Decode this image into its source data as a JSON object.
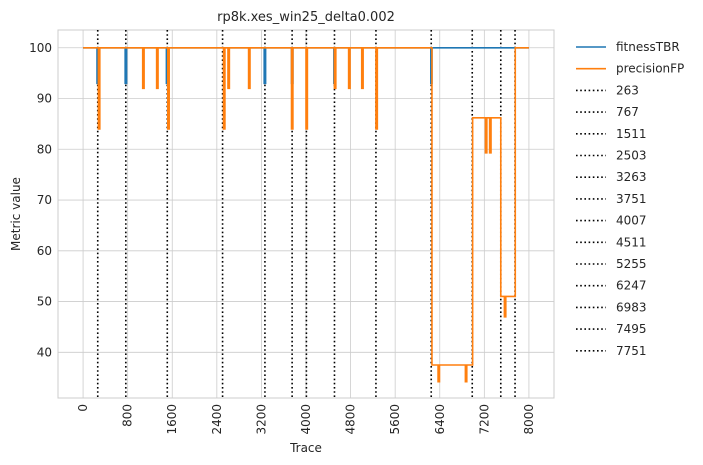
{
  "chart_data": {
    "type": "line",
    "title": "rp8k.xes_win25_delta0.002",
    "xlabel": "Trace",
    "ylabel": "Metric value",
    "xlim": [
      -450,
      8450
    ],
    "ylim": [
      31,
      103.5
    ],
    "xticks": [
      0,
      800,
      1600,
      2400,
      3200,
      4000,
      4800,
      5600,
      6400,
      7200,
      8000
    ],
    "yticks": [
      40,
      50,
      60,
      70,
      80,
      90,
      100
    ],
    "grid": true,
    "legend_position": "outside-right",
    "series": [
      {
        "name": "fitnessTBR",
        "color": "#1f77b4",
        "points": [
          [
            0,
            100
          ],
          [
            250,
            100
          ],
          [
            250,
            93
          ],
          [
            275,
            93
          ],
          [
            275,
            100
          ],
          [
            755,
            100
          ],
          [
            755,
            93
          ],
          [
            780,
            93
          ],
          [
            780,
            100
          ],
          [
            1495,
            100
          ],
          [
            1495,
            93
          ],
          [
            1520,
            93
          ],
          [
            1520,
            100
          ],
          [
            3250,
            100
          ],
          [
            3250,
            93
          ],
          [
            3275,
            93
          ],
          [
            3275,
            100
          ],
          [
            3740,
            100
          ],
          [
            3740,
            93
          ],
          [
            3765,
            93
          ],
          [
            3765,
            100
          ],
          [
            4500,
            100
          ],
          [
            4500,
            93
          ],
          [
            4525,
            93
          ],
          [
            4525,
            100
          ],
          [
            6240,
            100
          ],
          [
            6240,
            93
          ],
          [
            6260,
            93
          ],
          [
            6260,
            100
          ],
          [
            8000,
            100
          ]
        ]
      },
      {
        "name": "precisionFP",
        "color": "#ff7f0e",
        "points": [
          [
            0,
            100
          ],
          [
            275,
            100
          ],
          [
            275,
            84
          ],
          [
            300,
            84
          ],
          [
            300,
            100
          ],
          [
            1070,
            100
          ],
          [
            1070,
            92
          ],
          [
            1095,
            92
          ],
          [
            1095,
            100
          ],
          [
            1320,
            100
          ],
          [
            1320,
            92
          ],
          [
            1345,
            92
          ],
          [
            1345,
            100
          ],
          [
            1520,
            100
          ],
          [
            1520,
            84
          ],
          [
            1545,
            84
          ],
          [
            1545,
            100
          ],
          [
            2520,
            100
          ],
          [
            2520,
            84
          ],
          [
            2545,
            84
          ],
          [
            2545,
            100
          ],
          [
            2600,
            100
          ],
          [
            2600,
            92
          ],
          [
            2625,
            92
          ],
          [
            2625,
            100
          ],
          [
            2970,
            100
          ],
          [
            2970,
            92
          ],
          [
            2995,
            92
          ],
          [
            2995,
            100
          ],
          [
            3740,
            100
          ],
          [
            3740,
            84
          ],
          [
            3765,
            84
          ],
          [
            3765,
            100
          ],
          [
            4000,
            100
          ],
          [
            4000,
            84
          ],
          [
            4025,
            84
          ],
          [
            4025,
            100
          ],
          [
            4510,
            100
          ],
          [
            4510,
            92
          ],
          [
            4535,
            92
          ],
          [
            4535,
            100
          ],
          [
            4765,
            100
          ],
          [
            4765,
            92
          ],
          [
            4790,
            92
          ],
          [
            4790,
            100
          ],
          [
            5000,
            100
          ],
          [
            5000,
            92
          ],
          [
            5025,
            92
          ],
          [
            5025,
            100
          ],
          [
            5255,
            100
          ],
          [
            5255,
            84
          ],
          [
            5280,
            84
          ],
          [
            5280,
            100
          ],
          [
            6260,
            100
          ],
          [
            6260,
            37.5
          ],
          [
            6370,
            37.5
          ],
          [
            6370,
            34.2
          ],
          [
            6395,
            34.2
          ],
          [
            6395,
            37.5
          ],
          [
            6860,
            37.5
          ],
          [
            6860,
            34.2
          ],
          [
            6885,
            34.2
          ],
          [
            6885,
            37.5
          ],
          [
            6990,
            37.5
          ],
          [
            6990,
            86.2
          ],
          [
            7220,
            86.2
          ],
          [
            7220,
            79.3
          ],
          [
            7245,
            79.3
          ],
          [
            7245,
            86.2
          ],
          [
            7295,
            86.2
          ],
          [
            7295,
            79.3
          ],
          [
            7320,
            79.3
          ],
          [
            7320,
            86.2
          ],
          [
            7495,
            86.2
          ],
          [
            7495,
            51
          ],
          [
            7560,
            51
          ],
          [
            7560,
            47
          ],
          [
            7585,
            47
          ],
          [
            7585,
            51
          ],
          [
            7755,
            51
          ],
          [
            7755,
            100
          ],
          [
            8000,
            100
          ]
        ]
      }
    ],
    "vlines": {
      "color": "#000000",
      "style": "dotted",
      "positions": [
        263,
        767,
        1511,
        2503,
        3263,
        3751,
        4007,
        4511,
        5255,
        6247,
        6983,
        7495,
        7751
      ],
      "labels": [
        "263",
        "767",
        "1511",
        "2503",
        "3263",
        "3751",
        "4007",
        "4511",
        "5255",
        "6247",
        "6983",
        "7495",
        "7751"
      ]
    }
  }
}
